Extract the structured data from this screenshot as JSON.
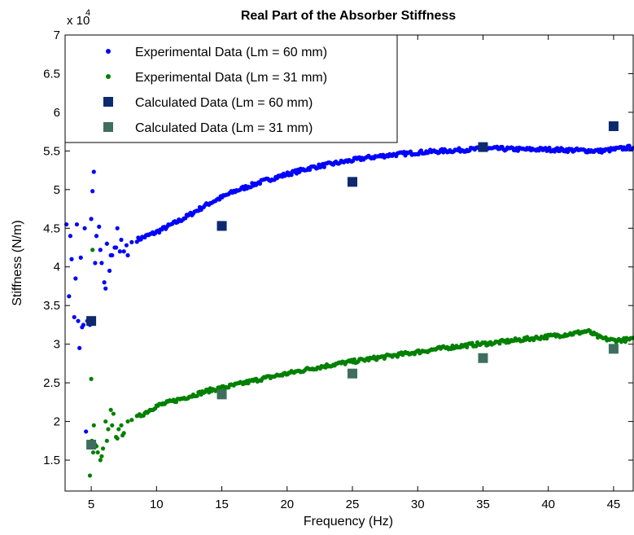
{
  "chart_data": {
    "type": "scatter",
    "title": "Real Part of the Absorber Stiffness",
    "xlabel": "Frequency (Hz)",
    "ylabel": "Stiffness (N/m)",
    "y_multiplier_label": "x 10",
    "y_multiplier_exponent": "4",
    "xlim": [
      3,
      46.5
    ],
    "ylim": [
      1.1,
      7.0
    ],
    "xticks": [
      5,
      10,
      15,
      20,
      25,
      30,
      35,
      40,
      45
    ],
    "xtick_labels": [
      "5",
      "10",
      "15",
      "20",
      "25",
      "30",
      "35",
      "40",
      "45"
    ],
    "yticks": [
      1.5,
      2,
      2.5,
      3,
      3.5,
      4,
      4.5,
      5,
      5.5,
      6,
      6.5,
      7
    ],
    "ytick_labels": [
      "1.5",
      "2",
      "2.5",
      "3",
      "3.5",
      "4",
      "4.5",
      "5",
      "5.5",
      "6",
      "6.5",
      "7"
    ],
    "grid": false,
    "legend_position": "top-left",
    "series": [
      {
        "name": "Experimental Data (Lm = 60 mm)",
        "marker": "dot",
        "color": "#0000ff",
        "curve": {
          "x": [
            8.5,
            10,
            12,
            14,
            16,
            18,
            20,
            22,
            24,
            26,
            28,
            30,
            32,
            34,
            36,
            38,
            40,
            42,
            44,
            46.5
          ],
          "y": [
            4.35,
            4.45,
            4.62,
            4.82,
            4.98,
            5.1,
            5.2,
            5.29,
            5.35,
            5.41,
            5.45,
            5.48,
            5.5,
            5.52,
            5.53,
            5.52,
            5.52,
            5.51,
            5.5,
            5.55
          ]
        },
        "scatter": {
          "x": [
            3.1,
            3.3,
            3.5,
            3.7,
            3.9,
            4.1,
            4.3,
            4.5,
            4.7,
            4.9,
            5.1,
            5.2,
            5.4,
            5.6,
            5.8,
            6.0,
            6.2,
            6.4,
            6.6,
            6.8,
            7.0,
            7.2,
            7.5,
            7.8,
            8.1,
            3.4,
            3.8,
            4.2,
            4.6,
            5.0,
            5.3,
            5.7,
            6.1,
            6.5,
            6.9,
            7.3,
            7.7,
            4.0,
            4.4
          ],
          "y": [
            4.55,
            3.62,
            4.1,
            3.35,
            4.55,
            2.95,
            3.22,
            4.5,
            3.3,
            3.25,
            4.98,
            5.23,
            4.4,
            4.52,
            4.05,
            3.8,
            4.3,
            3.95,
            4.15,
            4.25,
            4.5,
            4.2,
            4.2,
            4.15,
            4.32,
            4.4,
            3.85,
            4.12,
            1.87,
            4.62,
            4.05,
            4.22,
            3.72,
            4.15,
            4.25,
            4.35,
            4.28,
            3.3,
            3.25
          ]
        }
      },
      {
        "name": "Experimental Data (Lm = 31 mm)",
        "marker": "dot",
        "color": "#008000",
        "curve": {
          "x": [
            8.5,
            10,
            12,
            14,
            16,
            18,
            20,
            22,
            24,
            26,
            28,
            30,
            32,
            34,
            36,
            38,
            40,
            42,
            43,
            44,
            45,
            46.5
          ],
          "y": [
            2.05,
            2.2,
            2.3,
            2.4,
            2.47,
            2.55,
            2.62,
            2.69,
            2.75,
            2.8,
            2.85,
            2.9,
            2.95,
            2.99,
            3.02,
            3.06,
            3.1,
            3.14,
            3.17,
            3.08,
            3.05,
            3.06
          ]
        },
        "scatter": {
          "x": [
            4.9,
            5.0,
            5.1,
            5.2,
            5.3,
            5.5,
            5.7,
            5.9,
            6.1,
            6.3,
            6.5,
            6.7,
            6.9,
            7.1,
            7.3,
            7.5,
            7.8,
            8.1,
            5.05,
            5.15,
            5.4,
            5.8,
            6.2,
            6.6,
            7.0,
            7.4
          ],
          "y": [
            1.3,
            2.55,
            4.22,
            1.95,
            1.7,
            1.6,
            1.5,
            1.65,
            2.0,
            1.9,
            2.15,
            2.1,
            1.8,
            1.9,
            1.95,
            1.85,
            2.0,
            2.02,
            1.75,
            1.6,
            1.68,
            1.55,
            1.75,
            1.95,
            1.78,
            1.82
          ]
        }
      },
      {
        "name": "Calculated Data (Lm = 60 mm)",
        "marker": "square",
        "color": "#0d2a6e",
        "x": [
          5,
          15,
          25,
          35,
          45
        ],
        "y": [
          3.3,
          4.53,
          5.1,
          5.55,
          5.82
        ]
      },
      {
        "name": "Calculated Data (Lm = 31 mm)",
        "marker": "square",
        "color": "#3f6e5e",
        "x": [
          5,
          15,
          25,
          35,
          45
        ],
        "y": [
          1.7,
          2.35,
          2.62,
          2.82,
          2.94
        ]
      }
    ]
  }
}
